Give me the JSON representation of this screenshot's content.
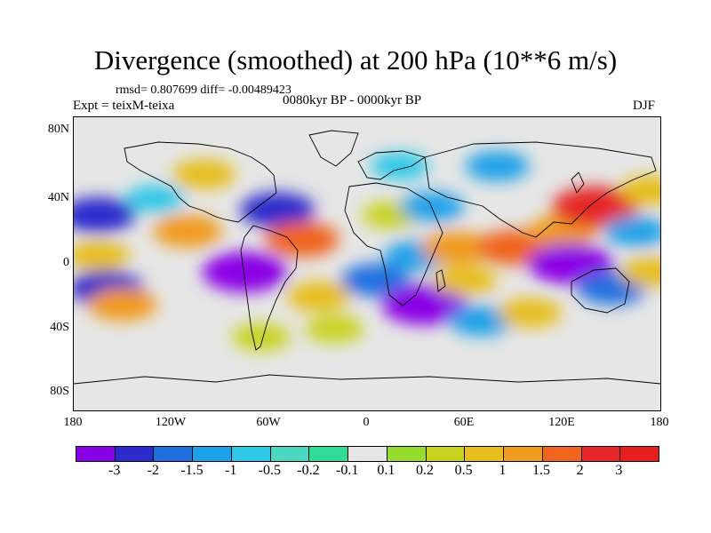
{
  "figure": {
    "title": "Divergence (smoothed) at 200 hPa (10**6 m/s)",
    "stats": "rmsd= 0.807699 diff= -0.00489423",
    "experiment": "Expt = teixM-teixa",
    "period": "0080kyr BP - 0000kyr BP",
    "season": "DJF"
  },
  "axes": {
    "y_ticks": [
      "80N",
      "40N",
      "0",
      "40S",
      "80S"
    ],
    "x_ticks": [
      "180",
      "120W",
      "60W",
      "0",
      "60E",
      "120E",
      "180"
    ]
  },
  "colorbar": {
    "labels": [
      "-3",
      "-2",
      "-1.5",
      "-1",
      "-0.5",
      "-0.2",
      "-0.1",
      "0.1",
      "0.2",
      "0.5",
      "1",
      "1.5",
      "2",
      "3"
    ],
    "colors": [
      "#8a00e6",
      "#2c2ccc",
      "#1f6fe0",
      "#1ea0e8",
      "#2ec8e8",
      "#4ad8c0",
      "#2edc96",
      "#e6e6e6",
      "#96dc2e",
      "#c8d21e",
      "#e6be1e",
      "#f09a1e",
      "#f0641e",
      "#e62828",
      "#e61e1e"
    ]
  },
  "map_data": {
    "lon_range": [
      -180,
      180
    ],
    "lat_range": [
      -90,
      90
    ],
    "blobs": [
      {
        "lon": -165,
        "lat": 30,
        "value": -2
      },
      {
        "lon": -165,
        "lat": 5,
        "value": 1
      },
      {
        "lon": -160,
        "lat": -15,
        "value": -2
      },
      {
        "lon": -150,
        "lat": -25,
        "value": 1.5
      },
      {
        "lon": -130,
        "lat": 40,
        "value": -0.5
      },
      {
        "lon": -110,
        "lat": 20,
        "value": 1.5
      },
      {
        "lon": -100,
        "lat": 55,
        "value": 1
      },
      {
        "lon": -75,
        "lat": -5,
        "value": -3
      },
      {
        "lon": -65,
        "lat": -45,
        "value": 0.5
      },
      {
        "lon": -55,
        "lat": 33,
        "value": -2
      },
      {
        "lon": -40,
        "lat": 15,
        "value": 2
      },
      {
        "lon": -30,
        "lat": -20,
        "value": 1
      },
      {
        "lon": -20,
        "lat": -40,
        "value": 0.5
      },
      {
        "lon": 5,
        "lat": -10,
        "value": -1.5
      },
      {
        "lon": 20,
        "lat": 60,
        "value": -0.5
      },
      {
        "lon": 15,
        "lat": 30,
        "value": 0.5
      },
      {
        "lon": 30,
        "lat": 5,
        "value": -1
      },
      {
        "lon": 35,
        "lat": -25,
        "value": -3
      },
      {
        "lon": 40,
        "lat": 35,
        "value": -1
      },
      {
        "lon": 55,
        "lat": 10,
        "value": 1.5
      },
      {
        "lon": 60,
        "lat": -10,
        "value": 1
      },
      {
        "lon": 70,
        "lat": -35,
        "value": -1
      },
      {
        "lon": 80,
        "lat": 60,
        "value": -1
      },
      {
        "lon": 90,
        "lat": 10,
        "value": 2
      },
      {
        "lon": 100,
        "lat": -30,
        "value": 1
      },
      {
        "lon": 120,
        "lat": 20,
        "value": 1.5
      },
      {
        "lon": 125,
        "lat": 0,
        "value": -3
      },
      {
        "lon": 140,
        "lat": 35,
        "value": 3
      },
      {
        "lon": 150,
        "lat": -15,
        "value": -1.5
      },
      {
        "lon": 165,
        "lat": 20,
        "value": -1
      },
      {
        "lon": 175,
        "lat": 45,
        "value": 1
      },
      {
        "lon": 175,
        "lat": -5,
        "value": 1
      }
    ]
  }
}
